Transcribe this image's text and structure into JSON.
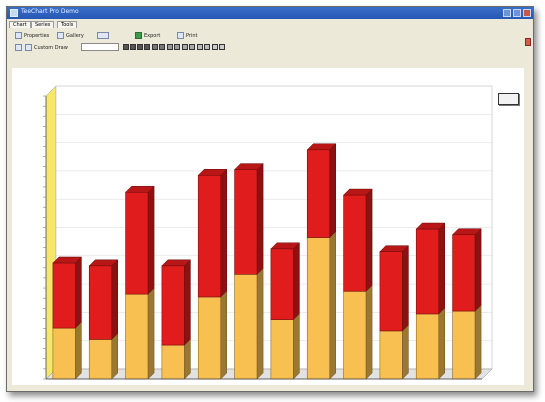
{
  "window": {
    "title": "TeeChart Pro Demo"
  },
  "tabs": [
    {
      "label": "Chart"
    },
    {
      "label": "Series"
    },
    {
      "label": "Tools"
    }
  ],
  "toolbar1": {
    "items": [
      {
        "label": "Properties"
      },
      {
        "label": "Gallery"
      },
      {
        "label": "Export"
      },
      {
        "label": "Print"
      }
    ]
  },
  "toolbar2": {
    "combo_label": "Custom Draw"
  },
  "chart_data": {
    "type": "bar",
    "title": "",
    "categories": [
      "",
      "",
      "",
      "",
      "",
      "",
      "",
      "",
      "",
      "",
      "",
      ""
    ],
    "ylim": [
      0,
      100
    ],
    "grid": true,
    "series": [
      {
        "values": [
          18,
          14,
          30,
          12,
          29,
          37,
          21,
          50,
          31,
          17,
          23,
          24
        ],
        "color": "#f8c050"
      },
      {
        "values": [
          23,
          26,
          36,
          28,
          43,
          37,
          25,
          31,
          34,
          28,
          30,
          27
        ],
        "color": "#e11c1c"
      }
    ]
  }
}
